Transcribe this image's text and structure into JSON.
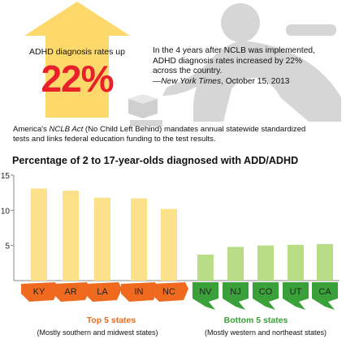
{
  "header": {
    "arrow_label": "ADHD diagnosis rates up",
    "big_stat": "22%",
    "quote_text": "In the 4 years after NCLB was implemented, ADHD diagnosis rates increased by 22% across the country.",
    "quote_source_pub": "—New York Times",
    "quote_source_date": ", October 15, 2013"
  },
  "nclb_note": {
    "prefix": "America's ",
    "act": "NCLB Act",
    "rest": " (No Child Left Behind) mandates annual statewide standardized tests and links federal education funding to the test results."
  },
  "groups": {
    "top_label": "Top 5 states",
    "top_note": "(Mostly southern and midwest states)",
    "bottom_label": "Bottom 5 states",
    "bottom_note": "(Mostly western and northeast states)"
  },
  "colors": {
    "arrow": "#fdd86a",
    "top_bar": "#fde08a",
    "bottom_bar": "#b9dd86",
    "top_state": "#ef6a1f",
    "bottom_state": "#3aa03a",
    "stat": "#e8202a"
  },
  "chart_data": {
    "type": "bar",
    "title": "Percentage of 2 to 17-year-olds diagnosed with ADD/ADHD",
    "categories": [
      "KY",
      "AR",
      "LA",
      "IN",
      "NC",
      "NV",
      "NJ",
      "CO",
      "UT",
      "CA"
    ],
    "groups": [
      "top",
      "top",
      "top",
      "top",
      "top",
      "bottom",
      "bottom",
      "bottom",
      "bottom",
      "bottom"
    ],
    "values": [
      13.1,
      12.8,
      11.8,
      11.7,
      10.2,
      3.7,
      4.8,
      5.0,
      5.1,
      5.2
    ],
    "ylim": [
      0,
      15
    ],
    "yticks": [
      5,
      10,
      15
    ],
    "xlabel": "",
    "ylabel": "",
    "grid": false
  }
}
